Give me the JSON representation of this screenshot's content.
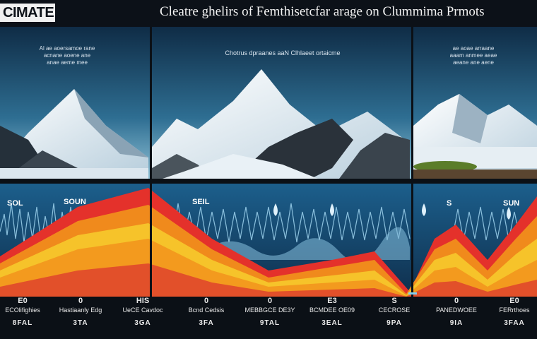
{
  "header": {
    "badge": "CIMATE",
    "title": "Cleatre ghelirs of Femthisetcfar arage on Clummima Prmots"
  },
  "panels": [
    {
      "caption": [
        "Al ae aoersamoe rane",
        "acnane aoene ane",
        "anae aeme mee"
      ]
    },
    {
      "caption": [
        "Chotrus dpraanes aaN Clhlaeet ortaicme"
      ]
    },
    {
      "caption": [
        "ae aoae arraane",
        "aaam anmee aeae",
        "aeane ane aene"
      ]
    }
  ],
  "markers": [
    "SOL",
    "SOUN",
    "SEIL",
    "S",
    "SUN"
  ],
  "bottom": [
    {
      "value": "E0",
      "label": "ECOlifighies",
      "sub": "8FAL"
    },
    {
      "value": "0",
      "label": "Hastiaanly Edg",
      "sub": "3TA"
    },
    {
      "value": "HIS",
      "label": "UeCE Cavdoc",
      "sub": "3GA"
    },
    {
      "value": "0",
      "label": "Bcnd Cedsis",
      "sub": "3FA"
    },
    {
      "value": "0",
      "label": "MEBBGCE DE3Y",
      "sub": "9TAL"
    },
    {
      "value": "E3",
      "label": "BCMDEE OE09",
      "sub": "3EAL"
    },
    {
      "value": "S",
      "label": "CECROSE",
      "sub": "9PA"
    },
    {
      "value": "0",
      "label": "PANEDWOEE",
      "sub": "9IA"
    },
    {
      "value": "E0",
      "label": "FERrthoes",
      "sub": "3FAA"
    }
  ],
  "colors": {
    "red": "#e4312b",
    "orange": "#f08a1c",
    "yellow": "#f6c32a",
    "blue": "#2f7fb3",
    "sky": "#173a55"
  }
}
